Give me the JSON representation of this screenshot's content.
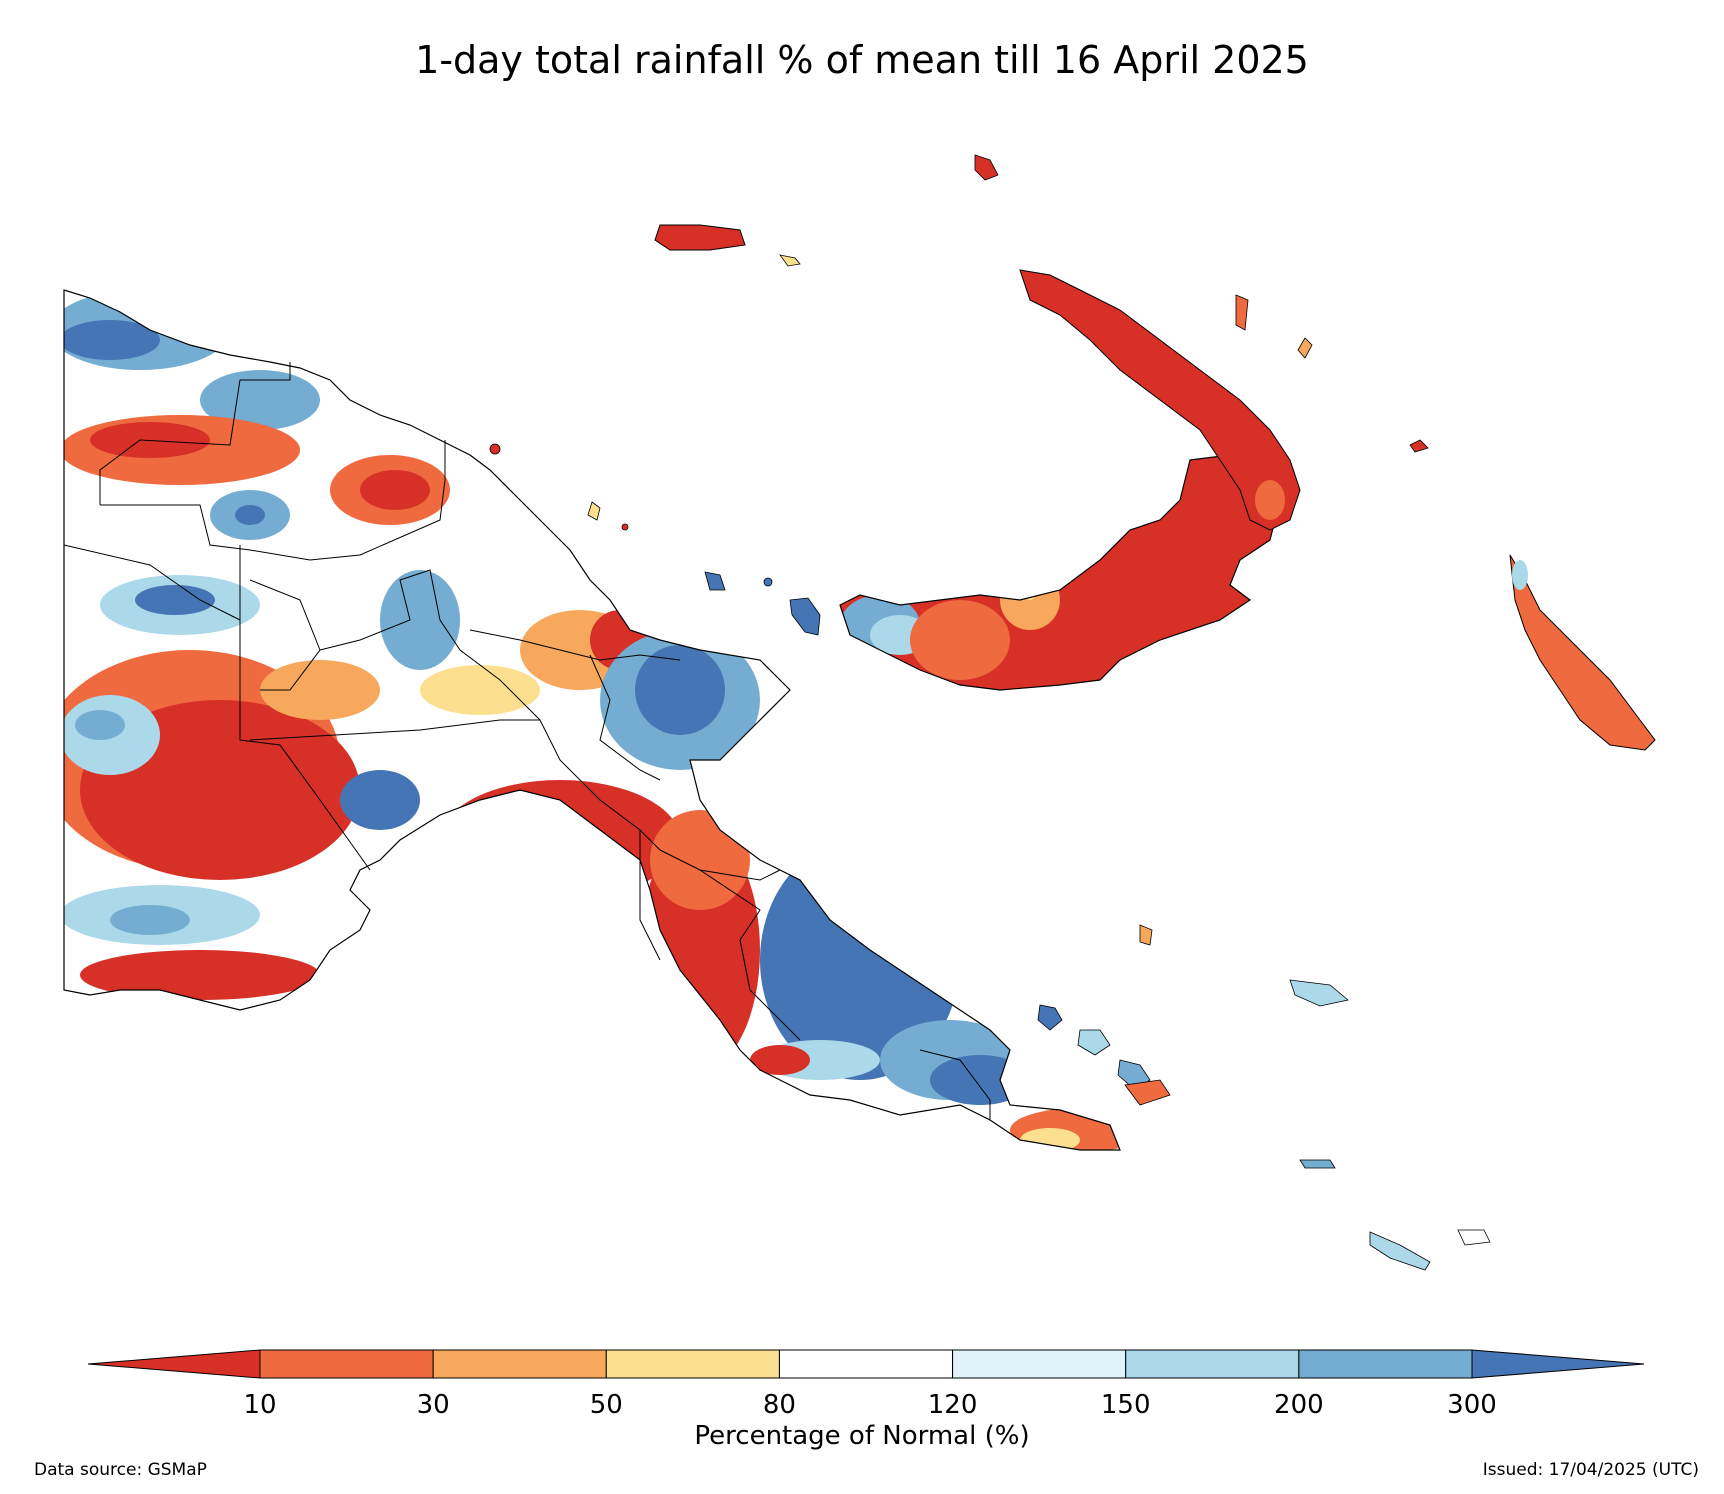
{
  "title": "1-day total rainfall % of mean till 16 April 2025",
  "colorbar": {
    "label": "Percentage of Normal (%)",
    "ticks": [
      "10",
      "30",
      "50",
      "80",
      "120",
      "150",
      "200",
      "300"
    ],
    "colors": [
      "#d73027",
      "#ef6a3f",
      "#f7a85c",
      "#fde08f",
      "#ffffff",
      "#e0f3f8",
      "#abd9e9",
      "#74add1",
      "#4575b4"
    ],
    "extend": "both"
  },
  "legend_categories": [
    {
      "range": "<10",
      "color": "#d73027"
    },
    {
      "range": "10-30",
      "color": "#ef6a3f"
    },
    {
      "range": "30-50",
      "color": "#f7a85c"
    },
    {
      "range": "50-80",
      "color": "#fde08f"
    },
    {
      "range": "80-120",
      "color": "#ffffff"
    },
    {
      "range": "120-150",
      "color": "#e0f3f8"
    },
    {
      "range": "150-200",
      "color": "#abd9e9"
    },
    {
      "range": "200-300",
      "color": "#74add1"
    },
    {
      "range": ">300",
      "color": "#4575b4"
    }
  ],
  "footer": {
    "source": "Data source: GSMaP",
    "issued": "Issued: 17/04/2025 (UTC)"
  }
}
